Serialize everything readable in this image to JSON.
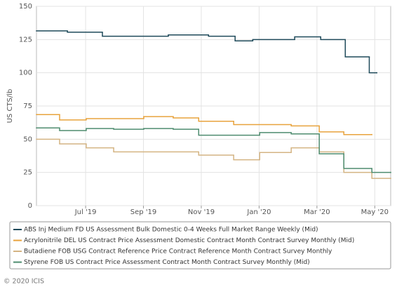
{
  "chart_data": {
    "type": "line",
    "step": "after",
    "y_label": "US CTS/lb",
    "ylim": [
      0,
      150
    ],
    "yticks": [
      0,
      25,
      50,
      75,
      100,
      125,
      150
    ],
    "xlim": [
      4.3,
      16.55
    ],
    "xticks": [
      {
        "value": 6,
        "label": "Jul '19"
      },
      {
        "value": 8,
        "label": "Sep '19"
      },
      {
        "value": 10,
        "label": "Nov '19"
      },
      {
        "value": 12,
        "label": "Jan '20"
      },
      {
        "value": 14,
        "label": "Mar '20"
      },
      {
        "value": 16,
        "label": "May '20"
      }
    ],
    "grid": true,
    "legend_position": "bottom",
    "series": [
      {
        "name": "ABS Inj Medium FD US Assessment Bulk Domestic 0-4 Weeks Full Market Range Weekly (Mid)",
        "color": "#1f4a5a",
        "x": [
          4.3,
          5.37,
          6.58,
          8.86,
          10.25,
          11.17,
          11.78,
          13.23,
          14.13,
          14.98,
          15.81,
          16.07
        ],
        "values": [
          131.5,
          130.5,
          127.5,
          128.5,
          127.5,
          124,
          125,
          127,
          125,
          112,
          100,
          100
        ]
      },
      {
        "name": "Acrylonitrile DEL US Contract Price Assessment Domestic Contract Month Contract Survey Monthly (Mid)",
        "color": "#e8a33d",
        "x": [
          4.3,
          5.1,
          6.02,
          8.01,
          9.03,
          9.91,
          11.12,
          13.11,
          14.08,
          14.93,
          15.9
        ],
        "values": [
          68.5,
          64.5,
          65.5,
          67,
          66,
          63.5,
          61,
          60,
          55.5,
          53.5,
          53.5
        ]
      },
      {
        "name": "Butadiene FOB USG Contract Reference Price Contract Reference Month Contract Survey Monthly",
        "color": "#d4b483",
        "x": [
          4.3,
          5.1,
          6.02,
          6.97,
          9.91,
          11.12,
          12.02,
          13.11,
          14.08,
          14.93,
          15.9,
          16.55
        ],
        "values": [
          50,
          46.5,
          43.5,
          40.5,
          38,
          34.5,
          40,
          43.5,
          40.5,
          25,
          20.5,
          20.5
        ]
      },
      {
        "name": "Styrene FOB US Contract Price Assessment Contract Month Contract Survey Monthly (Mid)",
        "color": "#4e8c6f",
        "x": [
          4.3,
          5.1,
          6.02,
          6.97,
          8.01,
          9.03,
          9.91,
          12.02,
          13.11,
          14.08,
          14.93,
          15.9,
          16.55
        ],
        "values": [
          58.5,
          56.5,
          58,
          57.5,
          58,
          57.5,
          53,
          55,
          54,
          39,
          28,
          25,
          25
        ]
      }
    ]
  },
  "footer": "© 2020 ICIS"
}
